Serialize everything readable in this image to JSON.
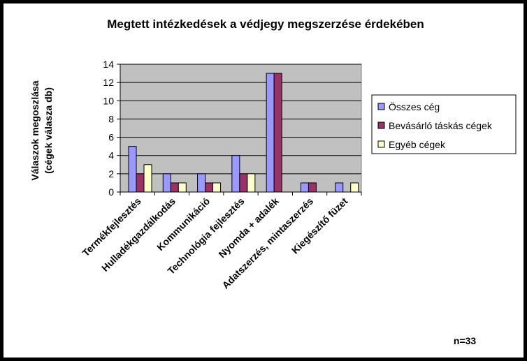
{
  "chart_data": {
    "type": "bar",
    "title": "Megtett intézkedések a védjegy megszerzése érdekében",
    "ylabel_lines": [
      "Válaszok megoszlása",
      "(cégek válasza db)"
    ],
    "xlabel": "",
    "categories": [
      "Termékfejlesztés",
      "Hulladékgazdálkodás",
      "Kommunikáció",
      "Technológia fejlesztés",
      "Nyomda + adalék",
      "Adatszerzés, mintaszerzés",
      "Kiegészítő füzet"
    ],
    "series": [
      {
        "name": "Összes cég",
        "color": "#9999ff",
        "values": [
          5,
          2,
          2,
          4,
          13,
          1,
          1
        ]
      },
      {
        "name": "Bevásárló táskás cégek",
        "color": "#993366",
        "values": [
          2,
          1,
          1,
          2,
          13,
          1,
          0
        ]
      },
      {
        "name": "Egyéb cégek",
        "color": "#ffffcc",
        "values": [
          3,
          1,
          1,
          2,
          0,
          0,
          1
        ]
      }
    ],
    "ylim": [
      0,
      14
    ],
    "yticks": [
      0,
      2,
      4,
      6,
      8,
      10,
      12,
      14
    ],
    "grid": true,
    "legend_position": "right",
    "plot_background": "#c0c0c0",
    "note": "n=33"
  }
}
